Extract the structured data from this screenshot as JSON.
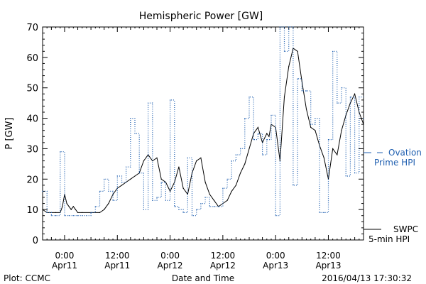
{
  "chart_data": {
    "type": "line",
    "title": "Hemispheric Power [GW]",
    "xlabel": "Date and Time",
    "ylabel": "P [GW]",
    "ylim": [
      0,
      70
    ],
    "xlim": [
      "2016-04-10T19:00",
      "2016-04-13T20:00"
    ],
    "y_ticks": [
      "0",
      "10",
      "20",
      "30",
      "40",
      "50",
      "60",
      "70"
    ],
    "x_ticks": [
      {
        "time": "2016-04-11T00:00",
        "line1": "0:00",
        "line2": "Apr11"
      },
      {
        "time": "2016-04-11T12:00",
        "line1": "12:00",
        "line2": "Apr11"
      },
      {
        "time": "2016-04-12T00:00",
        "line1": "0:00",
        "line2": "Apr12"
      },
      {
        "time": "2016-04-12T12:00",
        "line1": "12:00",
        "line2": "Apr12"
      },
      {
        "time": "2016-04-13T00:00",
        "line1": "0:00",
        "line2": "Apr13"
      },
      {
        "time": "2016-04-13T12:00",
        "line1": "12:00",
        "line2": "Apr13"
      }
    ],
    "grid": false,
    "series": [
      {
        "name": "SWPC 5-min HPI",
        "color": "#000000",
        "style": "solid",
        "x": [
          "2016-04-10T19:00",
          "2016-04-10T20:00",
          "2016-04-10T21:00",
          "2016-04-10T22:00",
          "2016-04-10T23:00",
          "2016-04-10T23:30",
          "2016-04-11T00:00",
          "2016-04-11T00:30",
          "2016-04-11T01:00",
          "2016-04-11T01:30",
          "2016-04-11T02:00",
          "2016-04-11T02:30",
          "2016-04-11T03:00",
          "2016-04-11T04:00",
          "2016-04-11T06:00",
          "2016-04-11T08:00",
          "2016-04-11T09:00",
          "2016-04-11T10:00",
          "2016-04-11T11:00",
          "2016-04-11T12:00",
          "2016-04-11T13:00",
          "2016-04-11T14:00",
          "2016-04-11T15:00",
          "2016-04-11T16:00",
          "2016-04-11T17:00",
          "2016-04-11T18:00",
          "2016-04-11T19:00",
          "2016-04-11T20:00",
          "2016-04-11T21:00",
          "2016-04-11T22:00",
          "2016-04-11T23:00",
          "2016-04-12T00:00",
          "2016-04-12T01:00",
          "2016-04-12T02:00",
          "2016-04-12T03:00",
          "2016-04-12T04:00",
          "2016-04-12T05:00",
          "2016-04-12T06:00",
          "2016-04-12T07:00",
          "2016-04-12T08:00",
          "2016-04-12T09:00",
          "2016-04-12T10:00",
          "2016-04-12T11:00",
          "2016-04-12T12:00",
          "2016-04-12T13:00",
          "2016-04-12T14:00",
          "2016-04-12T15:00",
          "2016-04-12T16:00",
          "2016-04-12T17:00",
          "2016-04-12T18:00",
          "2016-04-12T19:00",
          "2016-04-12T20:00",
          "2016-04-12T21:00",
          "2016-04-12T22:00",
          "2016-04-12T22:30",
          "2016-04-12T23:00",
          "2016-04-13T00:00",
          "2016-04-13T01:00",
          "2016-04-13T02:00",
          "2016-04-13T03:00",
          "2016-04-13T04:00",
          "2016-04-13T05:00",
          "2016-04-13T06:00",
          "2016-04-13T07:00",
          "2016-04-13T08:00",
          "2016-04-13T09:00",
          "2016-04-13T10:00",
          "2016-04-13T11:00",
          "2016-04-13T12:00",
          "2016-04-13T13:00",
          "2016-04-13T14:00",
          "2016-04-13T15:00",
          "2016-04-13T16:00",
          "2016-04-13T17:00",
          "2016-04-13T18:00",
          "2016-04-13T19:00",
          "2016-04-13T20:00"
        ],
        "y": [
          10,
          9,
          9,
          9,
          9,
          11,
          15,
          12,
          11,
          10,
          11,
          10,
          9,
          9,
          9,
          9,
          10,
          12,
          15,
          17,
          18,
          19,
          20,
          21,
          22,
          26,
          28,
          26,
          27,
          20,
          19,
          16,
          19,
          24,
          17,
          15,
          22,
          26,
          27,
          19,
          15,
          13,
          11,
          12,
          13,
          16,
          18,
          22,
          25,
          30,
          35,
          37,
          32,
          35,
          34,
          38,
          37,
          26,
          47,
          57,
          63,
          62,
          52,
          43,
          37,
          36,
          31,
          27,
          20,
          30,
          28,
          36,
          41,
          45,
          48,
          42,
          38
        ]
      },
      {
        "name": "Ovation Prime HPI",
        "color": "#1f5fb0",
        "style": "dotted",
        "x": [
          "2016-04-10T19:00",
          "2016-04-10T20:00",
          "2016-04-10T21:00",
          "2016-04-10T22:00",
          "2016-04-10T23:00",
          "2016-04-11T00:00",
          "2016-04-11T01:00",
          "2016-04-11T02:00",
          "2016-04-11T03:00",
          "2016-04-11T04:00",
          "2016-04-11T05:00",
          "2016-04-11T06:00",
          "2016-04-11T07:00",
          "2016-04-11T08:00",
          "2016-04-11T09:00",
          "2016-04-11T10:00",
          "2016-04-11T11:00",
          "2016-04-11T12:00",
          "2016-04-11T13:00",
          "2016-04-11T14:00",
          "2016-04-11T15:00",
          "2016-04-11T16:00",
          "2016-04-11T17:00",
          "2016-04-11T18:00",
          "2016-04-11T19:00",
          "2016-04-11T20:00",
          "2016-04-11T21:00",
          "2016-04-11T22:00",
          "2016-04-11T23:00",
          "2016-04-12T00:00",
          "2016-04-12T01:00",
          "2016-04-12T02:00",
          "2016-04-12T03:00",
          "2016-04-12T04:00",
          "2016-04-12T05:00",
          "2016-04-12T06:00",
          "2016-04-12T07:00",
          "2016-04-12T08:00",
          "2016-04-12T09:00",
          "2016-04-12T10:00",
          "2016-04-12T11:00",
          "2016-04-12T12:00",
          "2016-04-12T13:00",
          "2016-04-12T14:00",
          "2016-04-12T15:00",
          "2016-04-12T16:00",
          "2016-04-12T17:00",
          "2016-04-12T18:00",
          "2016-04-12T19:00",
          "2016-04-12T20:00",
          "2016-04-12T21:00",
          "2016-04-12T22:00",
          "2016-04-12T23:00",
          "2016-04-13T00:00",
          "2016-04-13T01:00",
          "2016-04-13T02:00",
          "2016-04-13T03:00",
          "2016-04-13T04:00",
          "2016-04-13T05:00",
          "2016-04-13T06:00",
          "2016-04-13T07:00",
          "2016-04-13T08:00",
          "2016-04-13T09:00",
          "2016-04-13T10:00",
          "2016-04-13T11:00",
          "2016-04-13T12:00",
          "2016-04-13T13:00",
          "2016-04-13T14:00",
          "2016-04-13T15:00",
          "2016-04-13T16:00",
          "2016-04-13T17:00",
          "2016-04-13T18:00",
          "2016-04-13T19:00",
          "2016-04-13T20:00"
        ],
        "y": [
          16,
          9,
          8,
          8,
          29,
          8,
          8,
          8,
          8,
          8,
          8,
          9,
          11,
          16,
          20,
          16,
          13,
          21,
          19,
          24,
          40,
          35,
          22,
          10,
          45,
          13,
          14,
          19,
          13,
          46,
          11,
          10,
          9,
          27,
          8,
          10,
          12,
          14,
          11,
          11,
          11,
          17,
          20,
          26,
          28,
          30,
          40,
          47,
          33,
          35,
          28,
          33,
          41,
          8,
          70,
          62,
          70,
          18,
          53,
          49,
          49,
          38,
          40,
          9,
          9,
          33,
          62,
          45,
          50,
          21,
          47,
          22,
          47,
          40
        ]
      }
    ],
    "legend": {
      "placement": "right",
      "entries": [
        {
          "lines": [
            "Ovation",
            "Prime HPI"
          ],
          "color": "#1f5fb0",
          "style": "dotted"
        },
        {
          "lines": [
            "SWPC",
            "5-min HPI"
          ],
          "color": "#000000",
          "style": "solid"
        }
      ]
    },
    "annotations": {
      "footer_left": "Plot: CCMC",
      "footer_right": "2016/04/13 17:30:32"
    }
  }
}
